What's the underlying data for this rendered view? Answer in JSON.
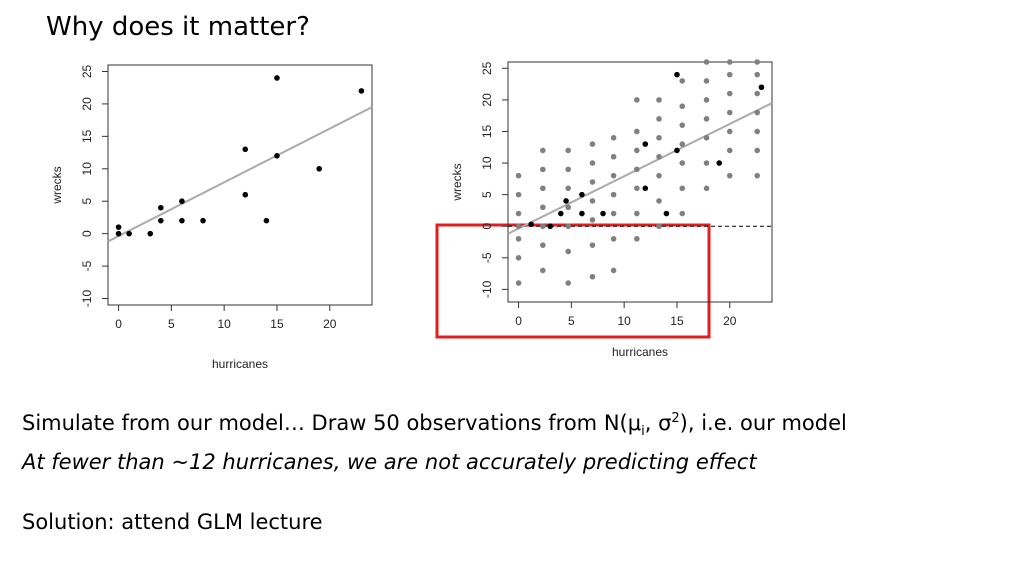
{
  "title": "Why does it matter?",
  "body": {
    "line1": [
      "Simulate from our model… Draw 50 observations from N(μ",
      "i",
      ", σ",
      "2",
      "), i.e. our model"
    ],
    "line2": "At fewer than ~12 hurricanes, we are not accurately predicting effect",
    "line3": "Solution: attend GLM lecture"
  },
  "chart_data": [
    {
      "type": "scatter",
      "xlabel": "hurricanes",
      "ylabel": "wrecks",
      "xlim": [
        -1,
        24
      ],
      "ylim": [
        -11,
        26
      ],
      "xticks": [
        0,
        5,
        10,
        15,
        20
      ],
      "yticks": [
        -10,
        -5,
        0,
        5,
        10,
        15,
        20,
        25
      ],
      "series": [
        {
          "color": "#000000",
          "x": [
            0,
            0,
            1,
            3,
            4,
            4,
            6,
            6,
            8,
            12,
            12,
            14,
            15,
            15,
            19,
            23
          ],
          "values": [
            1,
            0,
            0,
            0,
            2,
            4,
            2,
            5,
            2,
            6,
            13,
            2,
            12,
            24,
            10,
            22
          ]
        }
      ],
      "lines": [
        {
          "color": "#aaaaaa",
          "x": [
            -1,
            24
          ],
          "values": [
            -1.2,
            19.5
          ]
        }
      ]
    },
    {
      "type": "scatter",
      "xlabel": "hurricanes",
      "ylabel": "wrecks",
      "xlim": [
        -1,
        24
      ],
      "ylim": [
        -12,
        26
      ],
      "xticks": [
        0,
        5,
        10,
        15,
        20
      ],
      "yticks": [
        -10,
        -5,
        0,
        5,
        10,
        15,
        20,
        25
      ],
      "hline": 0,
      "series": [
        {
          "color": "#808080",
          "x": [
            0,
            0,
            0,
            0,
            0,
            0,
            0,
            2.3,
            2.3,
            2.3,
            2.3,
            2.3,
            2.3,
            2.3,
            4.7,
            4.7,
            4.7,
            4.7,
            4.7,
            4.7,
            4.7,
            7,
            7,
            7,
            7,
            7,
            7,
            7,
            9,
            9,
            9,
            9,
            9,
            9,
            9,
            11.2,
            11.2,
            11.2,
            11.2,
            11.2,
            11.2,
            11.2,
            13.3,
            13.3,
            13.3,
            13.3,
            13.3,
            13.3,
            13.3,
            15.5,
            15.5,
            15.5,
            15.5,
            15.5,
            15.5,
            15.5,
            17.8,
            17.8,
            17.8,
            17.8,
            17.8,
            17.8,
            17.8,
            20,
            20,
            20,
            20,
            20,
            20,
            20,
            22.6,
            22.6,
            22.6,
            22.6,
            22.6,
            22.6,
            22.6
          ],
          "values": [
            -9,
            -5,
            -2,
            0,
            2,
            5,
            8,
            -7,
            -3,
            0,
            3,
            6,
            9,
            12,
            -9,
            -4,
            0,
            3,
            6,
            9,
            12,
            -8,
            -3,
            1,
            4,
            7,
            10,
            13,
            -7,
            -2,
            2,
            5,
            8,
            11,
            14,
            -2,
            2,
            6,
            9,
            12,
            15,
            20,
            0,
            4,
            8,
            11,
            14,
            17,
            20,
            2,
            6,
            10,
            13,
            16,
            19,
            23,
            6,
            10,
            14,
            17,
            20,
            23,
            26,
            8,
            12,
            15,
            18,
            21,
            24,
            26,
            8,
            12,
            15,
            18,
            21,
            24,
            26
          ]
        },
        {
          "color": "#000000",
          "x": [
            1.2,
            3,
            4,
            4.5,
            6,
            6,
            8,
            12,
            12,
            14,
            15,
            15,
            19,
            23
          ],
          "values": [
            0.3,
            0,
            2,
            4,
            2,
            5,
            2,
            6,
            13,
            2,
            12,
            24,
            10,
            22
          ]
        }
      ],
      "lines": [
        {
          "color": "#aaaaaa",
          "x": [
            -1,
            24
          ],
          "values": [
            -1.2,
            19.5
          ]
        }
      ]
    }
  ]
}
